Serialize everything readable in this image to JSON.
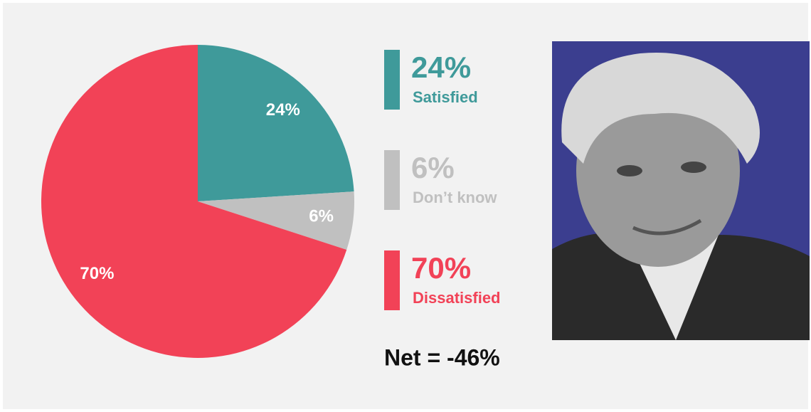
{
  "chart_data": {
    "type": "pie",
    "categories": [
      "Satisfied",
      "Don’t know",
      "Dissatisfied"
    ],
    "values": [
      24,
      6,
      70
    ],
    "value_labels": [
      "24%",
      "6%",
      "70%"
    ],
    "colors": [
      "#3f9a9a",
      "#c0c0c0",
      "#f24257"
    ],
    "annotation": "Net = -46%"
  }
}
